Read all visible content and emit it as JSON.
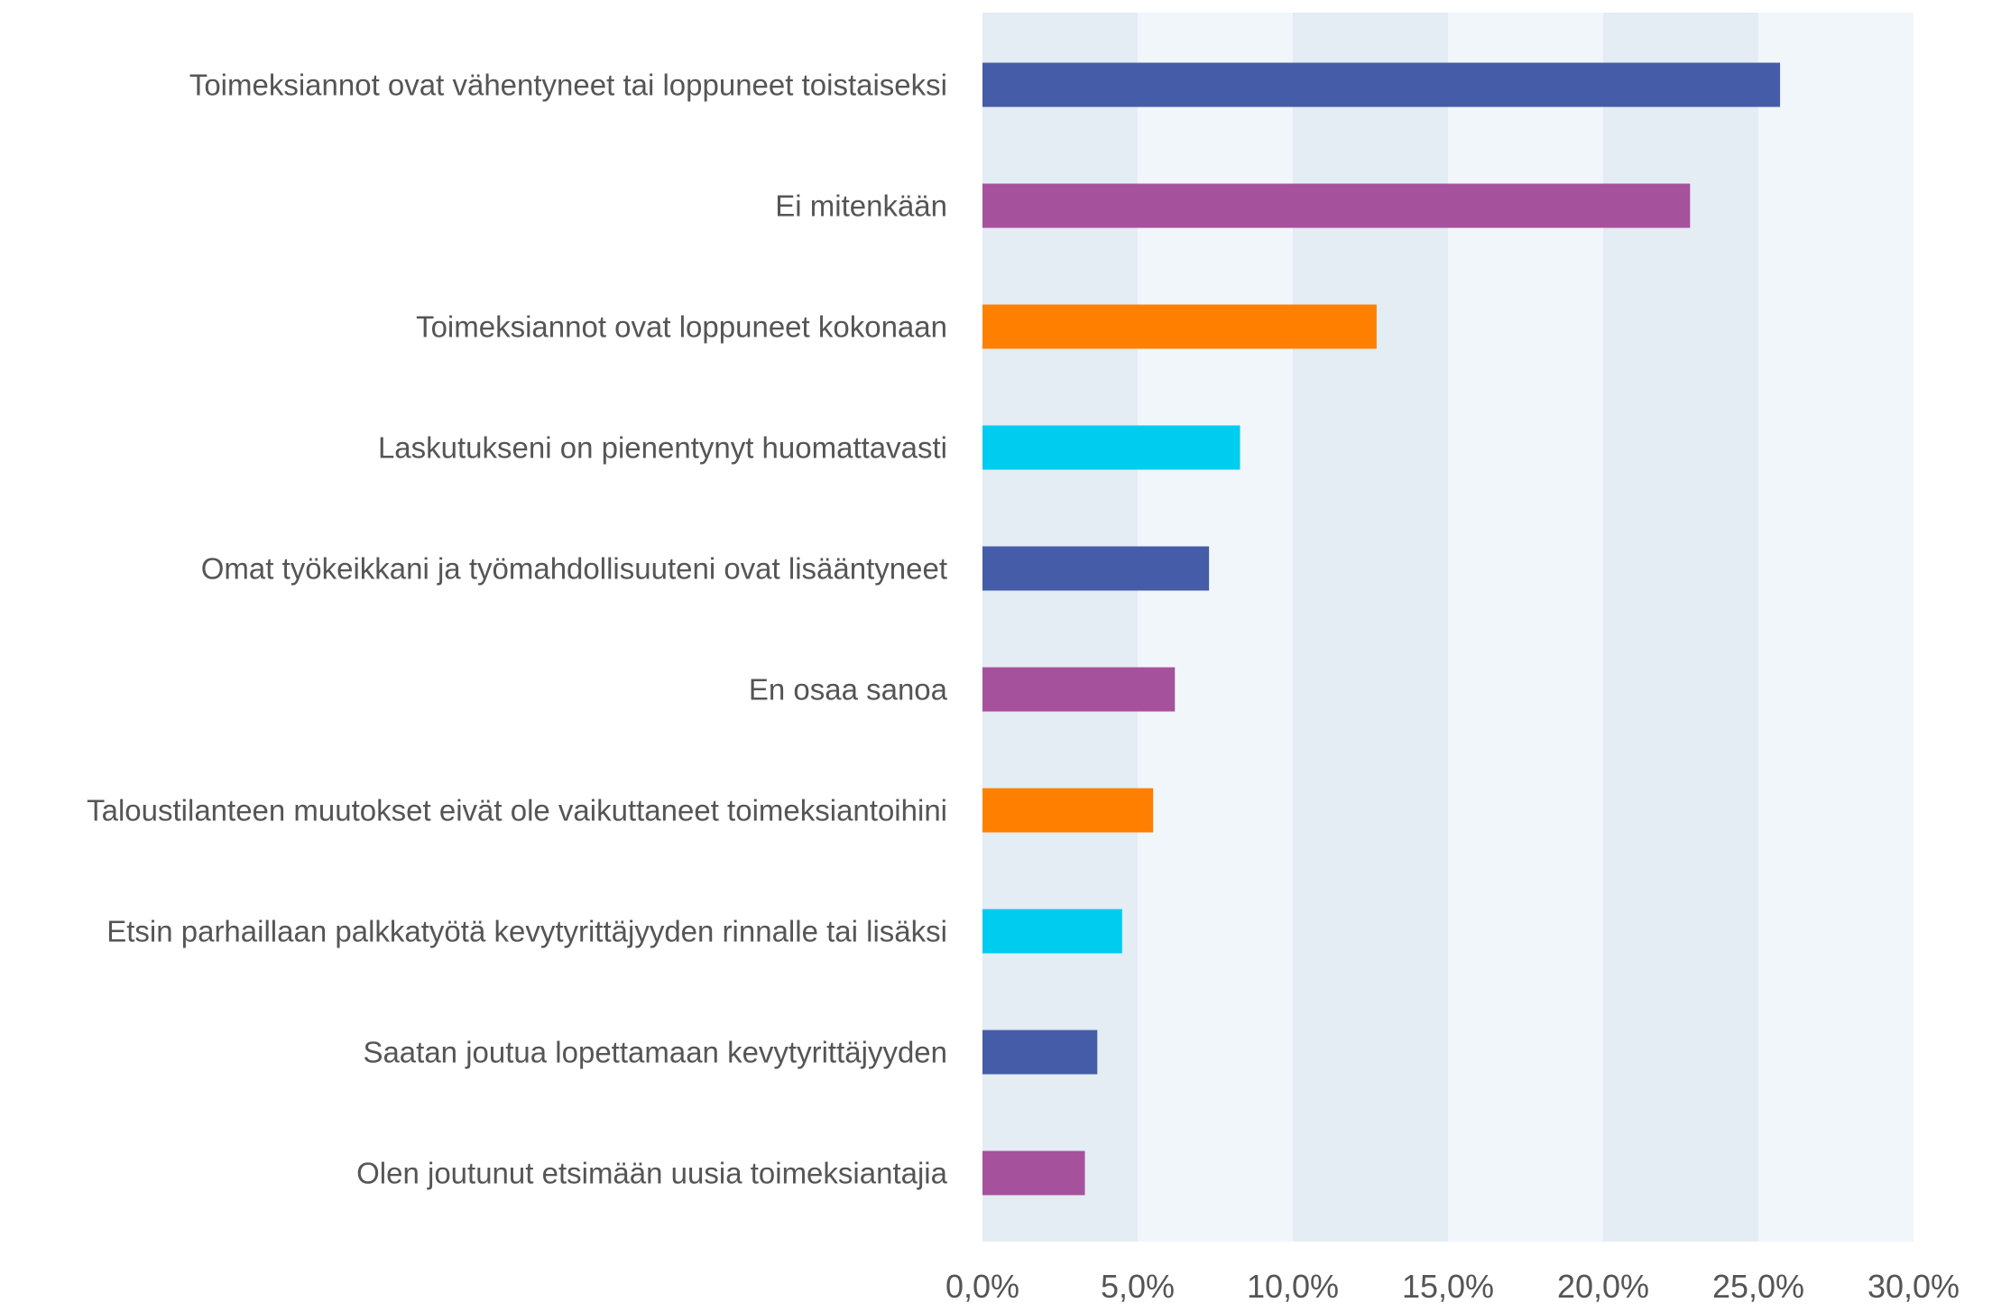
{
  "chart_data": {
    "type": "bar",
    "orientation": "horizontal",
    "categories": [
      "Toimeksiannot ovat vähentyneet tai loppuneet toistaiseksi",
      "Ei mitenkään",
      "Toimeksiannot ovat loppuneet kokonaan",
      "Laskutukseni on pienentynyt huomattavasti",
      "Omat työkeikkani ja työmahdollisuuteni ovat lisääntyneet",
      "En osaa sanoa",
      "Taloustilanteen muutokset eivät ole vaikuttaneet toimeksiantoihini",
      "Etsin parhaillaan palkkatyötä kevytyrittäjyyden rinnalle tai lisäksi",
      "Saatan joutua lopettamaan kevytyrittäjyyden",
      "Olen joutunut etsimään uusia toimeksiantajia"
    ],
    "values": [
      25.7,
      22.8,
      12.7,
      8.3,
      7.3,
      6.2,
      5.5,
      4.5,
      3.7,
      3.3
    ],
    "colors": [
      "#455ca8",
      "#a6519b",
      "#ff8000",
      "#00ccf0",
      "#455ca8",
      "#a6519b",
      "#ff8000",
      "#00ccf0",
      "#455ca8",
      "#a6519b"
    ],
    "xlim": [
      0,
      30
    ],
    "xticks": [
      {
        "value": 0,
        "label": "0,0%"
      },
      {
        "value": 5,
        "label": "5,0%"
      },
      {
        "value": 10,
        "label": "10,0%"
      },
      {
        "value": 15,
        "label": "15,0%"
      },
      {
        "value": 20,
        "label": "20,0%"
      },
      {
        "value": 25,
        "label": "25,0%"
      },
      {
        "value": 30,
        "label": "30,0%"
      }
    ],
    "band_colors": [
      "#e4ecf4",
      "#f1f6fb"
    ]
  }
}
